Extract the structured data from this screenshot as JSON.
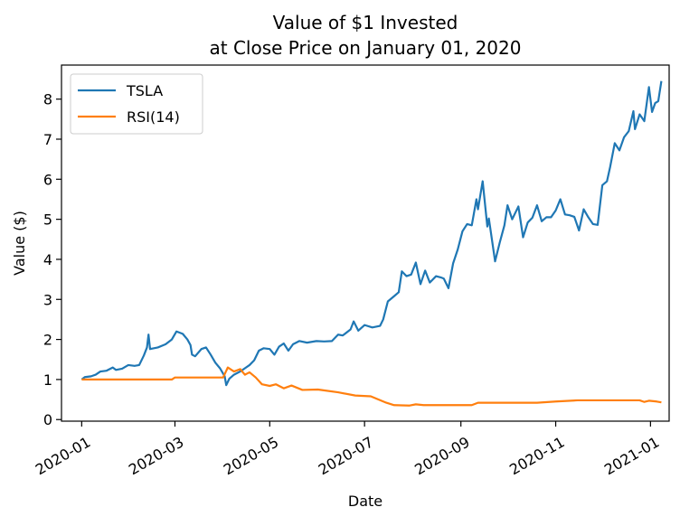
{
  "chart_data": {
    "type": "line",
    "title_line1": "Value of $1 Invested",
    "title_line2": "at Close Price on January 01, 2020",
    "xlabel": "Date",
    "ylabel": "Value ($)",
    "xlim": [
      "2019-12-19",
      "2021-01-13"
    ],
    "ylim": [
      -0.04,
      8.85
    ],
    "x_ticks": [
      "2020-01-01",
      "2020-03-01",
      "2020-05-01",
      "2020-07-01",
      "2020-09-01",
      "2020-11-01",
      "2021-01-01"
    ],
    "x_tick_labels": [
      "2020-01",
      "2020-03",
      "2020-05",
      "2020-07",
      "2020-09",
      "2020-11",
      "2021-01"
    ],
    "y_ticks": [
      0,
      1,
      2,
      3,
      4,
      5,
      6,
      7,
      8
    ],
    "grid": false,
    "legend_position": "top-left",
    "series": [
      {
        "name": "TSLA",
        "color": "#1f77b4",
        "points": [
          [
            "2020-01-01",
            1.0
          ],
          [
            "2020-01-03",
            1.06
          ],
          [
            "2020-01-07",
            1.08
          ],
          [
            "2020-01-10",
            1.12
          ],
          [
            "2020-01-13",
            1.2
          ],
          [
            "2020-01-17",
            1.22
          ],
          [
            "2020-01-21",
            1.3
          ],
          [
            "2020-01-23",
            1.24
          ],
          [
            "2020-01-27",
            1.27
          ],
          [
            "2020-01-31",
            1.36
          ],
          [
            "2020-02-04",
            1.34
          ],
          [
            "2020-02-07",
            1.36
          ],
          [
            "2020-02-10",
            1.6
          ],
          [
            "2020-02-12",
            1.8
          ],
          [
            "2020-02-13",
            2.12
          ],
          [
            "2020-02-14",
            1.76
          ],
          [
            "2020-02-19",
            1.8
          ],
          [
            "2020-02-24",
            1.88
          ],
          [
            "2020-02-28",
            2.0
          ],
          [
            "2020-03-02",
            2.2
          ],
          [
            "2020-03-06",
            2.14
          ],
          [
            "2020-03-09",
            2.0
          ],
          [
            "2020-03-11",
            1.86
          ],
          [
            "2020-03-12",
            1.62
          ],
          [
            "2020-03-14",
            1.58
          ],
          [
            "2020-03-18",
            1.76
          ],
          [
            "2020-03-21",
            1.8
          ],
          [
            "2020-03-24",
            1.62
          ],
          [
            "2020-03-27",
            1.42
          ],
          [
            "2020-03-30",
            1.28
          ],
          [
            "2020-04-02",
            1.08
          ],
          [
            "2020-04-03",
            0.86
          ],
          [
            "2020-04-05",
            1.02
          ],
          [
            "2020-04-08",
            1.12
          ],
          [
            "2020-04-12",
            1.2
          ],
          [
            "2020-04-15",
            1.28
          ],
          [
            "2020-04-18",
            1.36
          ],
          [
            "2020-04-21",
            1.48
          ],
          [
            "2020-04-24",
            1.72
          ],
          [
            "2020-04-27",
            1.78
          ],
          [
            "2020-05-01",
            1.76
          ],
          [
            "2020-05-04",
            1.62
          ],
          [
            "2020-05-07",
            1.82
          ],
          [
            "2020-05-10",
            1.9
          ],
          [
            "2020-05-13",
            1.72
          ],
          [
            "2020-05-16",
            1.88
          ],
          [
            "2020-05-20",
            1.96
          ],
          [
            "2020-05-25",
            1.92
          ],
          [
            "2020-05-31",
            1.96
          ],
          [
            "2020-06-05",
            1.95
          ],
          [
            "2020-06-10",
            1.96
          ],
          [
            "2020-06-14",
            2.12
          ],
          [
            "2020-06-17",
            2.1
          ],
          [
            "2020-06-22",
            2.25
          ],
          [
            "2020-06-24",
            2.45
          ],
          [
            "2020-06-27",
            2.22
          ],
          [
            "2020-07-01",
            2.36
          ],
          [
            "2020-07-06",
            2.3
          ],
          [
            "2020-07-11",
            2.34
          ],
          [
            "2020-07-13",
            2.5
          ],
          [
            "2020-07-16",
            2.95
          ],
          [
            "2020-07-20",
            3.08
          ],
          [
            "2020-07-23",
            3.18
          ],
          [
            "2020-07-25",
            3.7
          ],
          [
            "2020-07-28",
            3.58
          ],
          [
            "2020-07-31",
            3.62
          ],
          [
            "2020-08-03",
            3.92
          ],
          [
            "2020-08-06",
            3.38
          ],
          [
            "2020-08-09",
            3.72
          ],
          [
            "2020-08-12",
            3.42
          ],
          [
            "2020-08-16",
            3.58
          ],
          [
            "2020-08-19",
            3.55
          ],
          [
            "2020-08-21",
            3.52
          ],
          [
            "2020-08-24",
            3.28
          ],
          [
            "2020-08-27",
            3.9
          ],
          [
            "2020-08-30",
            4.25
          ],
          [
            "2020-09-02",
            4.7
          ],
          [
            "2020-09-05",
            4.88
          ],
          [
            "2020-09-08",
            4.85
          ],
          [
            "2020-09-11",
            5.5
          ],
          [
            "2020-09-12",
            5.25
          ],
          [
            "2020-09-15",
            5.95
          ],
          [
            "2020-09-18",
            4.82
          ],
          [
            "2020-09-19",
            5.02
          ],
          [
            "2020-09-23",
            3.95
          ],
          [
            "2020-09-26",
            4.42
          ],
          [
            "2020-09-29",
            4.85
          ],
          [
            "2020-10-01",
            5.35
          ],
          [
            "2020-10-04",
            5.0
          ],
          [
            "2020-10-08",
            5.32
          ],
          [
            "2020-10-11",
            4.55
          ],
          [
            "2020-10-14",
            4.92
          ],
          [
            "2020-10-17",
            5.04
          ],
          [
            "2020-10-20",
            5.35
          ],
          [
            "2020-10-23",
            4.95
          ],
          [
            "2020-10-26",
            5.05
          ],
          [
            "2020-10-29",
            5.05
          ],
          [
            "2020-11-01",
            5.22
          ],
          [
            "2020-11-04",
            5.5
          ],
          [
            "2020-11-07",
            5.12
          ],
          [
            "2020-11-10",
            5.1
          ],
          [
            "2020-11-13",
            5.06
          ],
          [
            "2020-11-16",
            4.72
          ],
          [
            "2020-11-19",
            5.25
          ],
          [
            "2020-11-22",
            5.05
          ],
          [
            "2020-11-25",
            4.88
          ],
          [
            "2020-11-28",
            4.86
          ],
          [
            "2020-12-01",
            5.85
          ],
          [
            "2020-12-04",
            5.95
          ],
          [
            "2020-12-06",
            6.3
          ],
          [
            "2020-12-09",
            6.9
          ],
          [
            "2020-12-12",
            6.72
          ],
          [
            "2020-12-15",
            7.05
          ],
          [
            "2020-12-18",
            7.2
          ],
          [
            "2020-12-21",
            7.7
          ],
          [
            "2020-12-22",
            7.25
          ],
          [
            "2020-12-25",
            7.62
          ],
          [
            "2020-12-28",
            7.45
          ],
          [
            "2020-12-31",
            8.3
          ],
          [
            "2021-01-02",
            7.68
          ],
          [
            "2021-01-04",
            7.9
          ],
          [
            "2021-01-06",
            7.95
          ],
          [
            "2021-01-08",
            8.45
          ]
        ]
      },
      {
        "name": "RSI(14)",
        "color": "#ff7f0e",
        "points": [
          [
            "2020-01-01",
            1.0
          ],
          [
            "2020-02-28",
            1.0
          ],
          [
            "2020-03-01",
            1.05
          ],
          [
            "2020-03-28",
            1.05
          ],
          [
            "2020-04-01",
            1.05
          ],
          [
            "2020-04-04",
            1.3
          ],
          [
            "2020-04-08",
            1.2
          ],
          [
            "2020-04-12",
            1.26
          ],
          [
            "2020-04-15",
            1.12
          ],
          [
            "2020-04-18",
            1.18
          ],
          [
            "2020-04-22",
            1.05
          ],
          [
            "2020-04-26",
            0.88
          ],
          [
            "2020-05-01",
            0.84
          ],
          [
            "2020-05-05",
            0.88
          ],
          [
            "2020-05-10",
            0.78
          ],
          [
            "2020-05-15",
            0.85
          ],
          [
            "2020-05-22",
            0.74
          ],
          [
            "2020-06-01",
            0.75
          ],
          [
            "2020-06-14",
            0.68
          ],
          [
            "2020-06-25",
            0.6
          ],
          [
            "2020-07-05",
            0.58
          ],
          [
            "2020-07-15",
            0.42
          ],
          [
            "2020-07-20",
            0.36
          ],
          [
            "2020-07-30",
            0.35
          ],
          [
            "2020-08-03",
            0.38
          ],
          [
            "2020-08-08",
            0.36
          ],
          [
            "2020-09-01",
            0.36
          ],
          [
            "2020-09-08",
            0.36
          ],
          [
            "2020-09-12",
            0.42
          ],
          [
            "2020-10-20",
            0.42
          ],
          [
            "2020-11-01",
            0.45
          ],
          [
            "2020-11-15",
            0.48
          ],
          [
            "2020-12-10",
            0.48
          ],
          [
            "2020-12-25",
            0.48
          ],
          [
            "2020-12-28",
            0.44
          ],
          [
            "2020-12-31",
            0.47
          ],
          [
            "2021-01-05",
            0.45
          ],
          [
            "2021-01-08",
            0.43
          ]
        ]
      }
    ]
  }
}
